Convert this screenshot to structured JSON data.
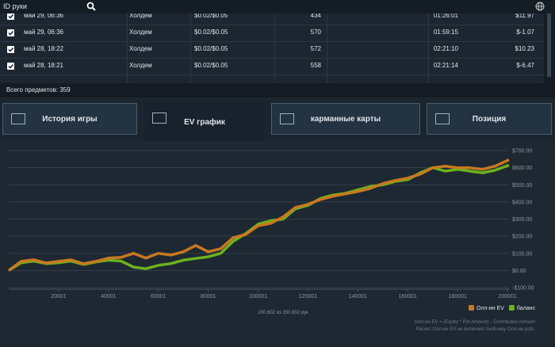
{
  "top_bar": {
    "search_placeholder": "ID руки"
  },
  "table": {
    "rows": [
      [
        "май 29, 06:36",
        "Холдем",
        "$0.02/$0.05",
        "434",
        "01:26:01",
        "$11.97"
      ],
      [
        "май 29, 06:36",
        "Холдем",
        "$0.02/$0.05",
        "570",
        "01:59:15",
        "$-1.07"
      ],
      [
        "май 28, 18:22",
        "Холдем",
        "$0.02/$0.05",
        "572",
        "02:21:10",
        "$10.23"
      ],
      [
        "май 28, 18:21",
        "Холдем",
        "$0.02/$0.05",
        "558",
        "02:21:14",
        "$-6.47"
      ]
    ],
    "total": "Всего предметов: 359"
  },
  "tabs": [
    "История игры",
    "EV график",
    "карманные карты",
    "Позиция"
  ],
  "chart_data": {
    "type": "line",
    "x": [
      1,
      5000,
      10000,
      15000,
      20000,
      25000,
      30000,
      35000,
      40000,
      45000,
      50000,
      55000,
      60000,
      65000,
      70000,
      75000,
      80000,
      85000,
      90000,
      95000,
      100000,
      105000,
      110000,
      115000,
      120000,
      125000,
      130000,
      135000,
      140000,
      145000,
      150000,
      155000,
      160000,
      165000,
      170000,
      175000,
      180000,
      185000,
      190000,
      195000,
      200602
    ],
    "series": [
      {
        "name": "Олл-ин EV",
        "color": "#c8791f",
        "values": [
          0,
          53,
          62,
          44,
          53,
          62,
          39,
          53,
          72,
          76,
          100,
          72,
          100,
          90,
          109,
          146,
          109,
          127,
          192,
          210,
          261,
          275,
          312,
          368,
          386,
          414,
          433,
          447,
          461,
          479,
          507,
          525,
          539,
          562,
          599,
          609,
          599,
          599,
          590,
          609,
          646
        ]
      },
      {
        "name": "баланс",
        "color": "#6cb21e",
        "values": [
          0,
          45,
          55,
          40,
          45,
          55,
          35,
          50,
          60,
          55,
          20,
          10,
          30,
          40,
          60,
          70,
          80,
          100,
          170,
          215,
          270,
          290,
          300,
          360,
          380,
          420,
          440,
          450,
          470,
          490,
          500,
          520,
          530,
          570,
          600,
          580,
          590,
          580,
          570,
          585,
          615
        ]
      }
    ],
    "xlim": [
      1,
      200602
    ],
    "xticks": [
      20001,
      40001,
      60001,
      80001,
      100001,
      120001,
      140001,
      160001,
      180001,
      200001
    ],
    "ylim": [
      -100,
      700
    ],
    "yticks": [
      {
        "value": -100,
        "label": "-$100.00"
      },
      {
        "value": 0,
        "label": "$0.00"
      },
      {
        "value": 100,
        "label": "$100.00"
      },
      {
        "value": 200,
        "label": "$200.00"
      },
      {
        "value": 300,
        "label": "$300.00"
      },
      {
        "value": 400,
        "label": "$400.00"
      },
      {
        "value": 500,
        "label": "$500.00"
      },
      {
        "value": 600,
        "label": "$600.00"
      },
      {
        "value": 700,
        "label": "$700.00"
      }
    ],
    "grid": true,
    "legend": "bottom-right"
  },
  "hands_count": "200,602 из 200,602 рук",
  "notes": [
    "Олл-ин EV = (Equity * Pot Amount) - Contributed Amount",
    "Расчет Олл-ин EV не включает multi-way Олл-ин pots."
  ]
}
